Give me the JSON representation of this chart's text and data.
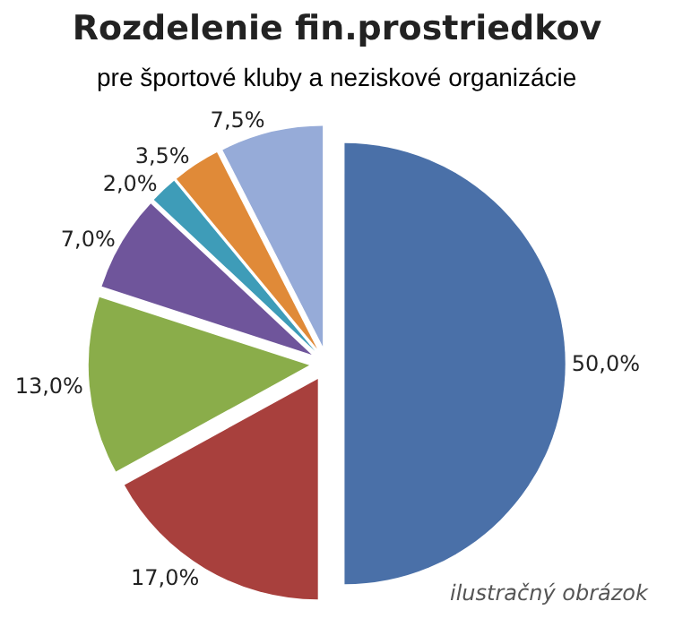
{
  "chart_data": {
    "type": "pie",
    "title": "Rozdelenie fin.prostriedkov",
    "subtitle": "pre športové kluby a neziskové organizácie",
    "categories": [
      null,
      null,
      null,
      null,
      null,
      null,
      null
    ],
    "values": [
      50,
      17,
      13,
      7,
      2,
      3.5,
      7.5
    ],
    "value_labels": [
      "50,0%",
      "17,0%",
      "13,0%",
      "7,0%",
      "2,0%",
      "3,5%",
      "7,5%"
    ],
    "colors": [
      "#4a70a8",
      "#a8403d",
      "#8aad4a",
      "#6f559b",
      "#3e9cb8",
      "#e08a38",
      "#96abd8"
    ],
    "legend": false,
    "annotations": [
      "ilustračný obrázok"
    ]
  }
}
